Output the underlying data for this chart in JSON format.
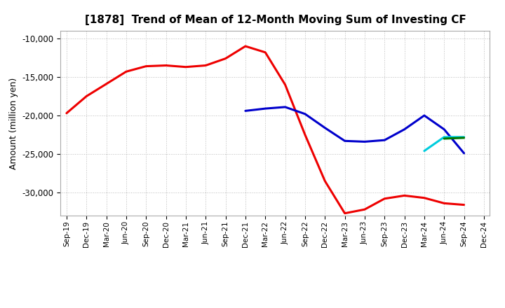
{
  "title": "[1878]  Trend of Mean of 12-Month Moving Sum of Investing CF",
  "ylabel": "Amount (million yen)",
  "ylim": [
    -33000,
    -9000
  ],
  "yticks": [
    -10000,
    -15000,
    -20000,
    -25000,
    -30000
  ],
  "background_color": "#ffffff",
  "grid_color": "#bbbbbb",
  "x_labels": [
    "Sep-19",
    "Dec-19",
    "Mar-20",
    "Jun-20",
    "Sep-20",
    "Dec-20",
    "Mar-21",
    "Jun-21",
    "Sep-21",
    "Dec-21",
    "Mar-22",
    "Jun-22",
    "Sep-22",
    "Dec-22",
    "Mar-23",
    "Jun-23",
    "Sep-23",
    "Dec-23",
    "Mar-24",
    "Jun-24",
    "Sep-24",
    "Dec-24"
  ],
  "series": {
    "3 Years": {
      "color": "#ee0000",
      "data": [
        [
          "Sep-19",
          -19700
        ],
        [
          "Dec-19",
          -17500
        ],
        [
          "Mar-20",
          -15900
        ],
        [
          "Jun-20",
          -14300
        ],
        [
          "Sep-20",
          -13600
        ],
        [
          "Dec-20",
          -13500
        ],
        [
          "Mar-21",
          -13700
        ],
        [
          "Jun-21",
          -13500
        ],
        [
          "Sep-21",
          -12600
        ],
        [
          "Dec-21",
          -11000
        ],
        [
          "Mar-22",
          -11800
        ],
        [
          "Jun-22",
          -16000
        ],
        [
          "Sep-22",
          -22500
        ],
        [
          "Dec-22",
          -28500
        ],
        [
          "Mar-23",
          -32700
        ],
        [
          "Jun-23",
          -32200
        ],
        [
          "Sep-23",
          -30800
        ],
        [
          "Dec-23",
          -30400
        ],
        [
          "Mar-24",
          -30700
        ],
        [
          "Jun-24",
          -31400
        ],
        [
          "Sep-24",
          -31600
        ]
      ]
    },
    "5 Years": {
      "color": "#0000cc",
      "data": [
        [
          "Dec-21",
          -19400
        ],
        [
          "Mar-22",
          -19100
        ],
        [
          "Jun-22",
          -18900
        ],
        [
          "Sep-22",
          -19800
        ],
        [
          "Dec-22",
          -21600
        ],
        [
          "Mar-23",
          -23300
        ],
        [
          "Jun-23",
          -23400
        ],
        [
          "Sep-23",
          -23200
        ],
        [
          "Dec-23",
          -21800
        ],
        [
          "Mar-24",
          -20000
        ],
        [
          "Jun-24",
          -21800
        ],
        [
          "Sep-24",
          -24900
        ]
      ]
    },
    "7 Years": {
      "color": "#00ccdd",
      "data": [
        [
          "Mar-24",
          -24600
        ],
        [
          "Jun-24",
          -22800
        ],
        [
          "Sep-24",
          -22800
        ]
      ]
    },
    "10 Years": {
      "color": "#007700",
      "data": [
        [
          "Jun-24",
          -23000
        ],
        [
          "Sep-24",
          -22900
        ]
      ]
    }
  }
}
